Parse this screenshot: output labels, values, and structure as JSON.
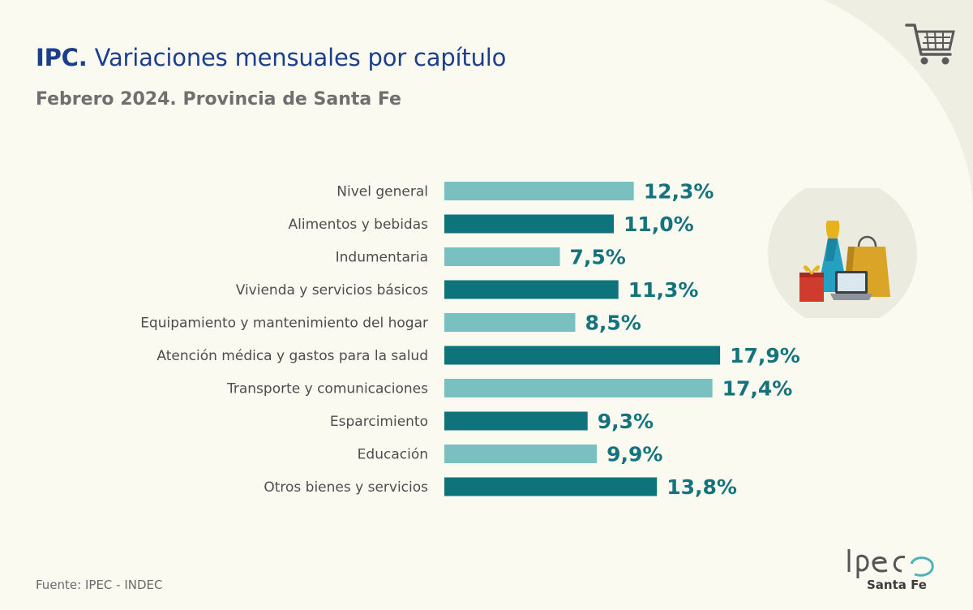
{
  "header": {
    "title_bold": "IPC.",
    "title_rest": "Variaciones mensuales por capítulo",
    "subtitle_bold": "Febrero 2024.",
    "subtitle_rest": "Provincia de Santa Fe"
  },
  "icons": {
    "top_right": "shopping-cart-icon",
    "illustration": "shopping-products-illustration"
  },
  "colors": {
    "background": "#fbfaf1",
    "bar_light": "#7ac0c1",
    "bar_dark": "#0f737c",
    "value_text": "#15737d",
    "title": "#1b3f8c"
  },
  "chart_data": {
    "type": "bar",
    "orientation": "horizontal",
    "categories": [
      "Nivel general",
      "Alimentos y bebidas",
      "Indumentaria",
      "Vivienda y servicios básicos",
      "Equipamiento y mantenimiento del hogar",
      "Atención médica y gastos para la salud",
      "Transporte y comunicaciones",
      "Esparcimiento",
      "Educación",
      "Otros bienes y servicios"
    ],
    "values": [
      12.3,
      11.0,
      7.5,
      11.3,
      8.5,
      17.9,
      17.4,
      9.3,
      9.9,
      13.8
    ],
    "value_labels": [
      "12,3%",
      "11,0%",
      "7,5%",
      "11,3%",
      "8,5%",
      "17,9%",
      "17,4%",
      "9,3%",
      "9,9%",
      "13,8%"
    ],
    "unit": "%",
    "bar_colors": [
      "#7ac0c1",
      "#0f737c",
      "#7ac0c1",
      "#0f737c",
      "#7ac0c1",
      "#0f737c",
      "#7ac0c1",
      "#0f737c",
      "#7ac0c1",
      "#0f737c"
    ],
    "xlim": [
      0,
      18
    ],
    "grid": false,
    "legend": "none"
  },
  "footer": {
    "source": "Fuente: IPEC - INDEC",
    "logo_text": "Ipec",
    "logo_sub": "Santa Fe"
  }
}
